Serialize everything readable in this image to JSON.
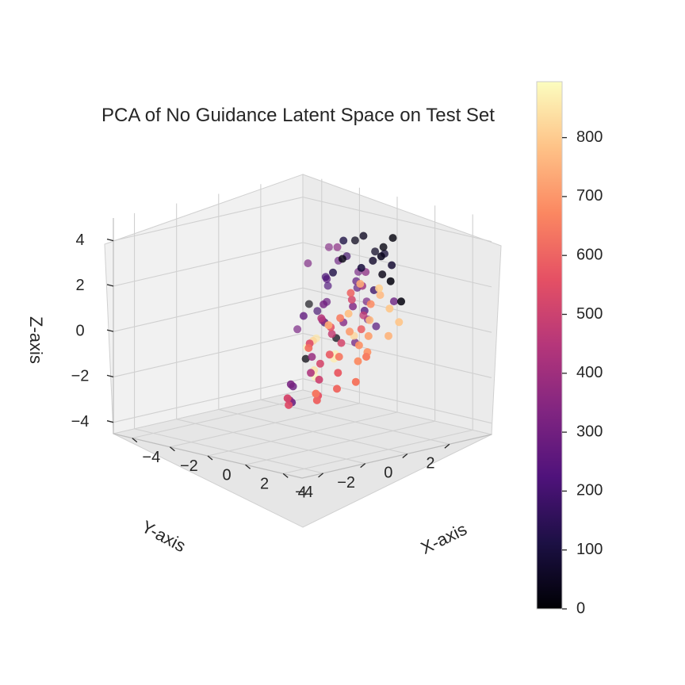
{
  "chart_data": {
    "type": "scatter",
    "projection": "3d",
    "title": "PCA of No Guidance Latent Space on Test Set",
    "xlabel": "X-axis",
    "ylabel": "Y-axis",
    "zlabel": "Z-axis",
    "xlim": [
      -5,
      5
    ],
    "ylim": [
      -5,
      4
    ],
    "zlim": [
      -4.5,
      5
    ],
    "x_ticks": [
      -4,
      -2,
      0,
      2,
      4
    ],
    "y_ticks": [
      -4,
      -2,
      0,
      2
    ],
    "z_ticks": [
      -4,
      -2,
      0,
      2,
      4
    ],
    "x_tick_labels": [
      "−4",
      "−2",
      "0",
      "2",
      "4"
    ],
    "y_tick_labels": [
      "−4",
      "−2",
      "0",
      "2"
    ],
    "z_tick_labels": [
      "−4",
      "−2",
      "0",
      "2",
      "4"
    ],
    "grid": true,
    "colormap": "magma",
    "colorbar": {
      "range": [
        0,
        895
      ],
      "ticks": [
        0,
        100,
        200,
        300,
        400,
        500,
        600,
        700,
        800
      ],
      "tick_labels": [
        "0",
        "100",
        "200",
        "300",
        "400",
        "500",
        "600",
        "700",
        "800"
      ]
    },
    "points": [
      {
        "x": -1.5,
        "y": 3.5,
        "z": 1.5,
        "c": 300
      },
      {
        "x": -2.0,
        "y": 3.0,
        "z": 2.0,
        "c": 280
      },
      {
        "x": -2.5,
        "y": 3.0,
        "z": 2.5,
        "c": 330
      },
      {
        "x": -1.0,
        "y": 3.0,
        "z": 1.0,
        "c": 250
      },
      {
        "x": -2.0,
        "y": 2.5,
        "z": 1.0,
        "c": 220
      },
      {
        "x": -1.5,
        "y": 2.5,
        "z": 2.8,
        "c": 350
      },
      {
        "x": -3.0,
        "y": 2.5,
        "z": 0.0,
        "c": 10
      },
      {
        "x": -1.0,
        "y": 3.5,
        "z": -0.5,
        "c": 300
      },
      {
        "x": -2.0,
        "y": 2.0,
        "z": 0.0,
        "c": 200
      },
      {
        "x": -1.5,
        "y": 2.0,
        "z": 0.5,
        "c": 280
      },
      {
        "x": -1.0,
        "y": 2.0,
        "z": -1.0,
        "c": 20
      },
      {
        "x": -2.5,
        "y": 2.0,
        "z": 2.0,
        "c": 320
      },
      {
        "x": -1.0,
        "y": 2.5,
        "z": 2.5,
        "c": 190
      },
      {
        "x": -0.5,
        "y": 2.5,
        "z": 1.5,
        "c": 260
      },
      {
        "x": 0.0,
        "y": 2.5,
        "z": 2.0,
        "c": 350
      },
      {
        "x": -0.5,
        "y": 3.0,
        "z": 0.5,
        "c": 310
      },
      {
        "x": 0.0,
        "y": 3.0,
        "z": -0.5,
        "c": 240
      },
      {
        "x": -1.5,
        "y": 1.5,
        "z": -1.0,
        "c": 850
      },
      {
        "x": -0.5,
        "y": 1.5,
        "z": -1.5,
        "c": 870
      },
      {
        "x": -1.0,
        "y": 1.0,
        "z": -2.5,
        "c": 880
      },
      {
        "x": 0.0,
        "y": 1.0,
        "z": -1.5,
        "c": 860
      },
      {
        "x": -0.5,
        "y": 0.5,
        "z": -2.0,
        "c": 840
      },
      {
        "x": 0.5,
        "y": 1.5,
        "z": -0.5,
        "c": 820
      },
      {
        "x": 0.0,
        "y": 2.0,
        "z": -1.0,
        "c": 300
      },
      {
        "x": -2.0,
        "y": 1.5,
        "z": -1.5,
        "c": 880
      },
      {
        "x": -1.5,
        "y": 1.0,
        "z": -1.8,
        "c": 10
      },
      {
        "x": -2.5,
        "y": 1.5,
        "z": -0.8,
        "c": 310
      },
      {
        "x": 0.5,
        "y": 2.0,
        "z": 0.5,
        "c": 230
      },
      {
        "x": 1.0,
        "y": 2.0,
        "z": 1.5,
        "c": 180
      },
      {
        "x": 0.5,
        "y": 2.5,
        "z": 3.0,
        "c": 60
      },
      {
        "x": 0.0,
        "y": 2.0,
        "z": 3.5,
        "c": 40
      },
      {
        "x": 1.0,
        "y": 2.5,
        "z": 3.0,
        "c": 90
      },
      {
        "x": 1.5,
        "y": 2.0,
        "z": 3.5,
        "c": 20
      },
      {
        "x": 1.0,
        "y": 1.5,
        "z": 4.0,
        "c": 50
      },
      {
        "x": 0.5,
        "y": 1.0,
        "z": 3.8,
        "c": 110
      },
      {
        "x": 1.5,
        "y": 1.5,
        "z": 3.0,
        "c": 70
      },
      {
        "x": 2.0,
        "y": 1.5,
        "z": 2.5,
        "c": 30
      },
      {
        "x": 2.0,
        "y": 2.0,
        "z": 4.0,
        "c": 15
      },
      {
        "x": 1.5,
        "y": 1.0,
        "z": 2.0,
        "c": 400
      },
      {
        "x": 2.5,
        "y": 1.5,
        "z": 3.0,
        "c": 80
      },
      {
        "x": 1.5,
        "y": 2.5,
        "z": 1.0,
        "c": 280
      },
      {
        "x": 0.5,
        "y": 0.5,
        "z": 2.5,
        "c": 120
      },
      {
        "x": 1.0,
        "y": 0.5,
        "z": 3.2,
        "c": 30
      },
      {
        "x": 2.5,
        "y": 1.0,
        "z": 3.5,
        "c": 45
      },
      {
        "x": 2.0,
        "y": 0.5,
        "z": 3.0,
        "c": 100
      },
      {
        "x": 1.0,
        "y": 1.0,
        "z": 1.0,
        "c": 330
      },
      {
        "x": 1.5,
        "y": 0.5,
        "z": 1.5,
        "c": 520
      },
      {
        "x": 2.0,
        "y": 0.0,
        "z": 2.0,
        "c": 600
      },
      {
        "x": 2.5,
        "y": 0.5,
        "z": 1.5,
        "c": 680
      },
      {
        "x": 2.5,
        "y": 0.0,
        "z": 2.5,
        "c": 740
      },
      {
        "x": 3.0,
        "y": 0.5,
        "z": 2.0,
        "c": 770
      },
      {
        "x": 3.0,
        "y": 1.0,
        "z": 2.5,
        "c": 20
      },
      {
        "x": 2.0,
        "y": -0.5,
        "z": 1.0,
        "c": 650
      },
      {
        "x": 1.5,
        "y": -0.5,
        "z": 0.5,
        "c": 560
      },
      {
        "x": 1.0,
        "y": 0.0,
        "z": 0.0,
        "c": 480
      },
      {
        "x": 2.5,
        "y": -0.5,
        "z": 0.5,
        "c": 710
      },
      {
        "x": 3.0,
        "y": 0.0,
        "z": 1.0,
        "c": 760
      },
      {
        "x": 3.5,
        "y": 0.5,
        "z": 1.5,
        "c": 790
      },
      {
        "x": 3.0,
        "y": -0.5,
        "z": 0.0,
        "c": 690
      },
      {
        "x": 2.0,
        "y": -1.0,
        "z": -0.5,
        "c": 580
      },
      {
        "x": 1.5,
        "y": -1.0,
        "z": -1.0,
        "c": 520
      },
      {
        "x": 2.5,
        "y": -1.0,
        "z": -0.5,
        "c": 640
      },
      {
        "x": 3.5,
        "y": -0.5,
        "z": 0.5,
        "c": 720
      },
      {
        "x": 3.5,
        "y": -1.0,
        "z": -0.5,
        "c": 680
      },
      {
        "x": 4.0,
        "y": 0.0,
        "z": 0.5,
        "c": 760
      },
      {
        "x": 4.0,
        "y": -1.0,
        "z": 0.0,
        "c": 700
      },
      {
        "x": 4.5,
        "y": -1.5,
        "z": 0.0,
        "c": 650
      },
      {
        "x": 4.5,
        "y": -2.0,
        "z": -1.0,
        "c": 640
      },
      {
        "x": 3.5,
        "y": -2.0,
        "z": -1.5,
        "c": 610
      },
      {
        "x": 3.0,
        "y": -1.5,
        "z": -1.0,
        "c": 580
      },
      {
        "x": 2.5,
        "y": -2.0,
        "z": -2.0,
        "c": 560
      },
      {
        "x": 2.0,
        "y": -1.5,
        "z": -1.5,
        "c": 500
      },
      {
        "x": 1.0,
        "y": -1.0,
        "z": -1.5,
        "c": 430
      },
      {
        "x": 0.5,
        "y": -0.5,
        "z": -1.0,
        "c": 380
      },
      {
        "x": 0.5,
        "y": -1.5,
        "z": -2.0,
        "c": 310
      },
      {
        "x": 1.0,
        "y": -2.0,
        "z": -2.5,
        "c": 350
      },
      {
        "x": 1.5,
        "y": -2.5,
        "z": -2.5,
        "c": 540
      },
      {
        "x": 0.0,
        "y": -1.0,
        "z": -3.0,
        "c": 260
      },
      {
        "x": -0.5,
        "y": -0.5,
        "z": -2.5,
        "c": 280
      },
      {
        "x": 2.0,
        "y": -3.0,
        "z": -2.0,
        "c": 520
      },
      {
        "x": 3.0,
        "y": -2.5,
        "z": -2.0,
        "c": 600
      },
      {
        "x": 3.5,
        "y": -3.0,
        "z": -1.5,
        "c": 640
      },
      {
        "x": 1.0,
        "y": -0.5,
        "z": 0.8,
        "c": 450
      },
      {
        "x": 0.5,
        "y": 0.0,
        "z": 0.5,
        "c": 380
      },
      {
        "x": 0.0,
        "y": 0.5,
        "z": 1.0,
        "c": 300
      },
      {
        "x": -0.5,
        "y": 0.0,
        "z": 0.5,
        "c": 260
      },
      {
        "x": 0.0,
        "y": 0.0,
        "z": -0.5,
        "c": 820
      },
      {
        "x": -0.5,
        "y": 1.0,
        "z": 0.0,
        "c": 200
      },
      {
        "x": 0.5,
        "y": 1.0,
        "z": 0.2,
        "c": 340
      },
      {
        "x": 1.5,
        "y": 0.0,
        "z": -0.3,
        "c": 520
      },
      {
        "x": 2.0,
        "y": 0.5,
        "z": 0.3,
        "c": 590
      },
      {
        "x": 1.0,
        "y": 1.5,
        "z": 0.5,
        "c": 470
      },
      {
        "x": -1.0,
        "y": 1.5,
        "z": 1.8,
        "c": 210
      },
      {
        "x": -1.5,
        "y": 2.0,
        "z": 1.5,
        "c": 240
      },
      {
        "x": 3.0,
        "y": -1.0,
        "z": 1.5,
        "c": 780
      },
      {
        "x": 2.5,
        "y": -1.5,
        "z": 1.0,
        "c": 730
      },
      {
        "x": 3.5,
        "y": 0.0,
        "z": 2.5,
        "c": 810
      },
      {
        "x": 4.0,
        "y": 0.5,
        "z": 1.0,
        "c": 790
      },
      {
        "x": 2.0,
        "y": -2.0,
        "z": 0.0,
        "c": 620
      },
      {
        "x": 1.5,
        "y": -1.5,
        "z": 0.0,
        "c": 540
      },
      {
        "x": 3.0,
        "y": 1.5,
        "z": 1.5,
        "c": 20
      }
    ]
  }
}
